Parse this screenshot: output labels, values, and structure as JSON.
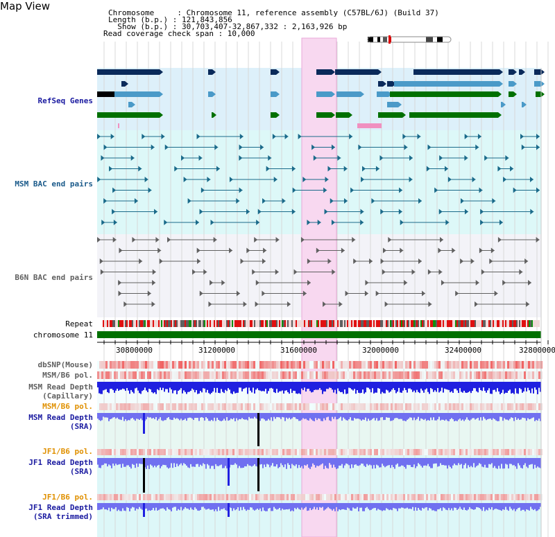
{
  "page_title": "Map View",
  "header": {
    "chromosome_line": "Chromosome     : Chromosome 11, reference assembly (C57BL/6J) (Build 37)",
    "length_line": "Length (b.p.) : 121,843,856",
    "show_line": "  Show (b.p.) : 30,703,407-32,867,332 : 2,163,926 bp",
    "coverage_line": "Read coverage check span : 10,000"
  },
  "tracks": {
    "refseq": "RefSeq Genes",
    "msm_bac": "MSM BAC end pairs",
    "b6n_bac": "B6N BAC end pairs",
    "repeat": "Repeat",
    "chromosome": "chromosome 11",
    "dbsnp": "dbSNP(Mouse)",
    "msm_b6_pol_1": "MSM/B6 pol.",
    "msm_read_depth_cap": "MSM Read Depth",
    "msm_read_depth_cap_sub": "(Capillary)",
    "msm_b6_pol_2": "MSM/B6 pol.",
    "msm_read_depth_sra": "MSM Read Depth",
    "msm_read_depth_sra_sub": "(SRA)",
    "jf1_b6_pol_1": "JF1/B6 pol.",
    "jf1_read_depth_sra": "JF1 Read Depth",
    "jf1_read_depth_sra_sub": "(SRA)",
    "jf1_b6_pol_2": "JF1/B6 pol.",
    "jf1_read_depth_trim": "JF1 Read Depth",
    "jf1_read_depth_trim_sub": "(SRA trimmed)"
  },
  "axis": {
    "ticks": [
      "30800000",
      "31200000",
      "31600000",
      "32000000",
      "32400000",
      "32800000"
    ]
  },
  "colors": {
    "refseq_bg": "#ddf0fa",
    "msm_bg": "#ddf8f8",
    "b6n_bg": "#f3f3f8",
    "highlight": "#f8d8f0",
    "chromosome_bar": "#007000",
    "gene_dark": "#0a2a5a",
    "gene_mid": "#4a9ac8",
    "gene_green": "#007000",
    "bac_msm": "#1a6a8a",
    "bac_b6n": "#606060",
    "depth_blue": "#2020e0",
    "depth_light": "#7070f0"
  }
}
